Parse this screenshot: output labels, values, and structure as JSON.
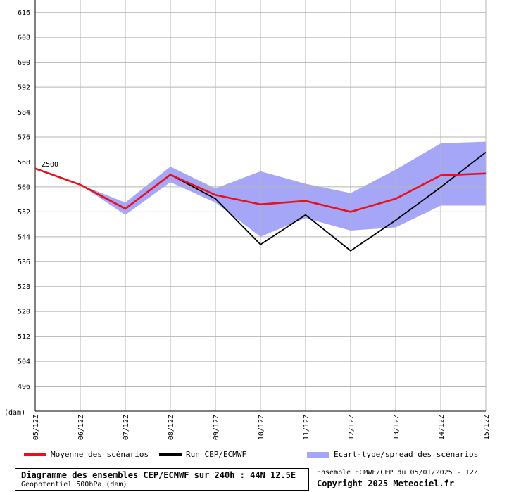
{
  "chart_data": {
    "type": "line",
    "ylabel": "(dam)",
    "ylim": [
      488,
      620
    ],
    "yticks": [
      496,
      504,
      512,
      520,
      528,
      536,
      544,
      552,
      560,
      568,
      576,
      584,
      592,
      600,
      608,
      616
    ],
    "x_labels": [
      "05/12Z",
      "06/12Z",
      "07/12Z",
      "08/12Z",
      "09/12Z",
      "10/12Z",
      "11/12Z",
      "12/12Z",
      "13/12Z",
      "14/12Z",
      "15/12Z"
    ],
    "annotation": "Z500",
    "grid": true,
    "series": [
      {
        "name": "Moyenne des scénarios",
        "color": "#e8101a",
        "values": [
          565.9,
          560.7,
          553.0,
          563.9,
          557.4,
          554.4,
          555.5,
          552.0,
          556.2,
          563.7,
          564.3
        ]
      },
      {
        "name": "Run CEP/ECMWF",
        "color": "#000000",
        "values": [
          565.9,
          560.7,
          553.0,
          563.9,
          556.2,
          541.5,
          551.0,
          539.5,
          549.3,
          559.9,
          571.1
        ]
      }
    ],
    "band": {
      "name": "Ecart-type/spread des scénarios",
      "color": "#a6a6f8",
      "upper": [
        565.9,
        560.7,
        555.0,
        566.5,
        559.5,
        565.0,
        561.0,
        558.0,
        565.5,
        574.0,
        574.5
      ],
      "lower": [
        565.9,
        560.7,
        551.0,
        561.5,
        555.0,
        544.0,
        550.0,
        546.0,
        547.0,
        554.0,
        554.0
      ]
    }
  },
  "title": {
    "line1": "Diagramme des ensembles CEP/ECMWF sur 240h : 44N 12.5E",
    "line2": "Geopotentiel 500hPa (dam)"
  },
  "info": {
    "line1": "Ensemble ECMWF/CEP du 05/01/2025 - 12Z",
    "line2": "Copyright 2025 Meteociel.fr"
  }
}
